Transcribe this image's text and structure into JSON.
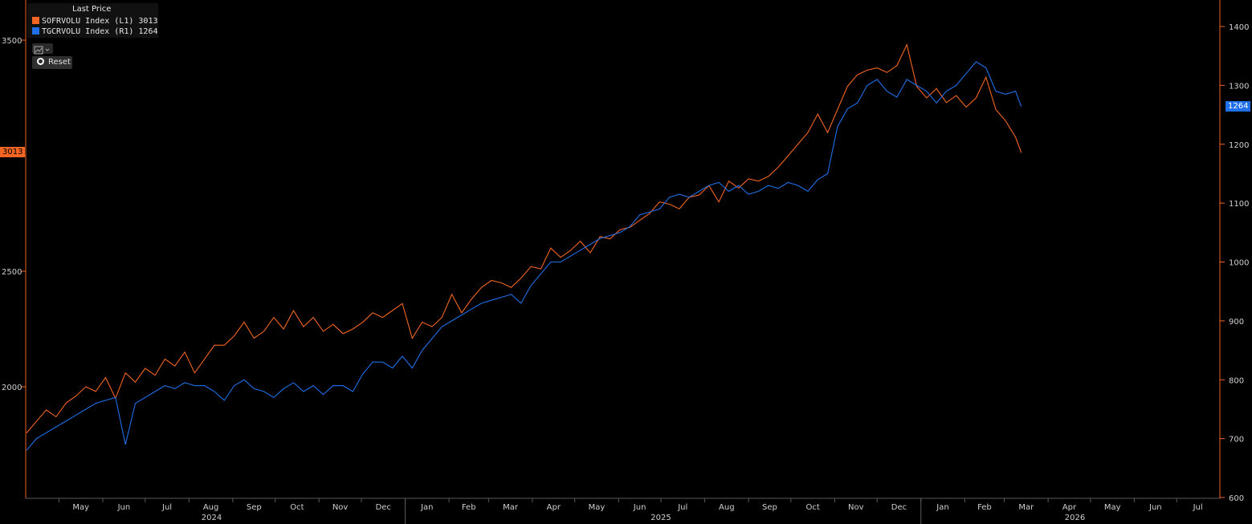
{
  "legend": {
    "title": "Last Price",
    "items": [
      {
        "label": "SOFRVOLU Index  (L1) 3013",
        "color": "#f26522"
      },
      {
        "label": "TGCRVOLU Index  (R1) 1264",
        "color": "#1f6fe8"
      }
    ]
  },
  "toolbar": {
    "chart_icon": "line-chart-icon",
    "reset_label": "Reset"
  },
  "tags": {
    "left_last": "3013",
    "right_last": "1264"
  },
  "chart_data": {
    "type": "line",
    "x_range": [
      "2024-04-08",
      "2026-07-31"
    ],
    "left_axis": {
      "ticks": [
        2000,
        2500,
        3000,
        3500
      ],
      "tick_labels": [
        "2000",
        "2500",
        "",
        "3500"
      ],
      "range": [
        1550,
        3550
      ]
    },
    "right_axis": {
      "ticks": [
        600,
        700,
        800,
        900,
        1000,
        1100,
        1200,
        1300,
        1400
      ],
      "range": [
        600,
        1400
      ]
    },
    "x_months": [
      "May",
      "Jun",
      "Jul",
      "Aug",
      "Sep",
      "Oct",
      "Nov",
      "Dec",
      "Jan",
      "Feb",
      "Mar",
      "Apr",
      "May",
      "Jun",
      "Jul",
      "Aug",
      "Sep",
      "Oct",
      "Nov",
      "Dec",
      "Jan",
      "Feb",
      "Mar",
      "Apr",
      "May",
      "Jun",
      "Jul"
    ],
    "x_month_dates": [
      "2024-05-01",
      "2024-06-01",
      "2024-07-01",
      "2024-08-01",
      "2024-09-01",
      "2024-10-01",
      "2024-11-01",
      "2024-12-01",
      "2025-01-01",
      "2025-02-01",
      "2025-03-01",
      "2025-04-01",
      "2025-05-01",
      "2025-06-01",
      "2025-07-01",
      "2025-08-01",
      "2025-09-01",
      "2025-10-01",
      "2025-11-01",
      "2025-12-01",
      "2026-01-01",
      "2026-02-01",
      "2026-03-01",
      "2026-04-01",
      "2026-05-01",
      "2026-06-01",
      "2026-07-01"
    ],
    "x_years": [
      "2024",
      "2025",
      "2026"
    ],
    "x_year_dates": [
      "2024-08-17",
      "2025-07-01",
      "2026-04-20"
    ],
    "x_year_boundaries": [
      "2025-01-01",
      "2026-01-01"
    ],
    "series": [
      {
        "name": "SOFRVOLU Index (L1)",
        "axis": "left",
        "color": "#f26522",
        "x": [
          "2024-04-08",
          "2024-04-15",
          "2024-04-22",
          "2024-04-29",
          "2024-05-06",
          "2024-05-13",
          "2024-05-20",
          "2024-05-27",
          "2024-06-03",
          "2024-06-10",
          "2024-06-17",
          "2024-06-24",
          "2024-07-01",
          "2024-07-08",
          "2024-07-15",
          "2024-07-22",
          "2024-07-29",
          "2024-08-05",
          "2024-08-12",
          "2024-08-19",
          "2024-08-26",
          "2024-09-02",
          "2024-09-09",
          "2024-09-16",
          "2024-09-23",
          "2024-09-30",
          "2024-10-07",
          "2024-10-14",
          "2024-10-21",
          "2024-10-28",
          "2024-11-04",
          "2024-11-11",
          "2024-11-18",
          "2024-11-25",
          "2024-12-02",
          "2024-12-09",
          "2024-12-16",
          "2024-12-23",
          "2024-12-30",
          "2025-01-06",
          "2025-01-13",
          "2025-01-20",
          "2025-01-27",
          "2025-02-03",
          "2025-02-10",
          "2025-02-17",
          "2025-02-24",
          "2025-03-03",
          "2025-03-10",
          "2025-03-17",
          "2025-03-24",
          "2025-03-31",
          "2025-04-07",
          "2025-04-14",
          "2025-04-21",
          "2025-04-28",
          "2025-05-05",
          "2025-05-12",
          "2025-05-19",
          "2025-05-26",
          "2025-06-02",
          "2025-06-09",
          "2025-06-16",
          "2025-06-23",
          "2025-06-30",
          "2025-07-07",
          "2025-07-14",
          "2025-07-21",
          "2025-07-28",
          "2025-08-04",
          "2025-08-11",
          "2025-08-18",
          "2025-08-25",
          "2025-09-01",
          "2025-09-08",
          "2025-09-15",
          "2025-09-22",
          "2025-09-29",
          "2025-10-06",
          "2025-10-13",
          "2025-10-20",
          "2025-10-27",
          "2025-11-03",
          "2025-11-10",
          "2025-11-17",
          "2025-11-24",
          "2025-12-01",
          "2025-12-08",
          "2025-12-15",
          "2025-12-22",
          "2025-12-29",
          "2026-01-05",
          "2026-01-12",
          "2026-01-19",
          "2026-01-26",
          "2026-02-02",
          "2026-02-09",
          "2026-02-16",
          "2026-02-23",
          "2026-03-02",
          "2026-03-09",
          "2026-03-13"
        ],
        "values": [
          1800,
          1850,
          1900,
          1870,
          1930,
          1960,
          2000,
          1980,
          2040,
          1950,
          2060,
          2020,
          2080,
          2050,
          2120,
          2090,
          2150,
          2060,
          2120,
          2180,
          2180,
          2220,
          2280,
          2210,
          2240,
          2300,
          2250,
          2330,
          2260,
          2300,
          2240,
          2270,
          2230,
          2250,
          2280,
          2320,
          2300,
          2330,
          2360,
          2210,
          2280,
          2260,
          2300,
          2400,
          2320,
          2380,
          2430,
          2460,
          2450,
          2430,
          2470,
          2520,
          2510,
          2600,
          2560,
          2590,
          2630,
          2580,
          2650,
          2640,
          2680,
          2690,
          2720,
          2750,
          2800,
          2790,
          2770,
          2820,
          2830,
          2870,
          2800,
          2890,
          2860,
          2900,
          2890,
          2910,
          2950,
          3000,
          3050,
          3100,
          3180,
          3100,
          3200,
          3300,
          3350,
          3370,
          3380,
          3360,
          3390,
          3480,
          3300,
          3250,
          3290,
          3230,
          3260,
          3210,
          3250,
          3340,
          3200,
          3150,
          3080,
          3013
        ]
      },
      {
        "name": "TGCRVOLU Index (R1)",
        "axis": "right",
        "color": "#1f6fe8",
        "x": [
          "2024-04-08",
          "2024-04-15",
          "2024-04-22",
          "2024-04-29",
          "2024-05-06",
          "2024-05-13",
          "2024-05-20",
          "2024-05-27",
          "2024-06-03",
          "2024-06-10",
          "2024-06-17",
          "2024-06-24",
          "2024-07-01",
          "2024-07-08",
          "2024-07-15",
          "2024-07-22",
          "2024-07-29",
          "2024-08-05",
          "2024-08-12",
          "2024-08-19",
          "2024-08-26",
          "2024-09-02",
          "2024-09-09",
          "2024-09-16",
          "2024-09-23",
          "2024-09-30",
          "2024-10-07",
          "2024-10-14",
          "2024-10-21",
          "2024-10-28",
          "2024-11-04",
          "2024-11-11",
          "2024-11-18",
          "2024-11-25",
          "2024-12-02",
          "2024-12-09",
          "2024-12-16",
          "2024-12-23",
          "2024-12-30",
          "2025-01-06",
          "2025-01-13",
          "2025-01-20",
          "2025-01-27",
          "2025-02-03",
          "2025-02-10",
          "2025-02-17",
          "2025-02-24",
          "2025-03-03",
          "2025-03-10",
          "2025-03-17",
          "2025-03-24",
          "2025-03-31",
          "2025-04-07",
          "2025-04-14",
          "2025-04-21",
          "2025-04-28",
          "2025-05-05",
          "2025-05-12",
          "2025-05-19",
          "2025-05-26",
          "2025-06-02",
          "2025-06-09",
          "2025-06-16",
          "2025-06-23",
          "2025-06-30",
          "2025-07-07",
          "2025-07-14",
          "2025-07-21",
          "2025-07-28",
          "2025-08-04",
          "2025-08-11",
          "2025-08-18",
          "2025-08-25",
          "2025-09-01",
          "2025-09-08",
          "2025-09-15",
          "2025-09-22",
          "2025-09-29",
          "2025-10-06",
          "2025-10-13",
          "2025-10-20",
          "2025-10-27",
          "2025-11-03",
          "2025-11-10",
          "2025-11-17",
          "2025-11-24",
          "2025-12-01",
          "2025-12-08",
          "2025-12-15",
          "2025-12-22",
          "2025-12-29",
          "2026-01-05",
          "2026-01-12",
          "2026-01-19",
          "2026-01-26",
          "2026-02-02",
          "2026-02-09",
          "2026-02-16",
          "2026-02-23",
          "2026-03-02",
          "2026-03-09",
          "2026-03-13"
        ],
        "values": [
          680,
          700,
          710,
          720,
          730,
          740,
          750,
          760,
          765,
          770,
          690,
          760,
          770,
          780,
          790,
          785,
          795,
          790,
          790,
          780,
          765,
          790,
          800,
          785,
          780,
          770,
          785,
          795,
          780,
          790,
          775,
          790,
          790,
          780,
          810,
          830,
          830,
          820,
          840,
          820,
          850,
          870,
          890,
          900,
          910,
          920,
          930,
          935,
          940,
          945,
          930,
          960,
          980,
          1000,
          1000,
          1010,
          1020,
          1030,
          1040,
          1045,
          1050,
          1060,
          1080,
          1085,
          1090,
          1110,
          1115,
          1110,
          1120,
          1130,
          1135,
          1120,
          1130,
          1115,
          1120,
          1130,
          1125,
          1135,
          1130,
          1120,
          1140,
          1150,
          1230,
          1260,
          1270,
          1300,
          1310,
          1290,
          1280,
          1310,
          1300,
          1290,
          1270,
          1290,
          1300,
          1320,
          1340,
          1330,
          1290,
          1285,
          1290,
          1264
        ]
      }
    ]
  }
}
